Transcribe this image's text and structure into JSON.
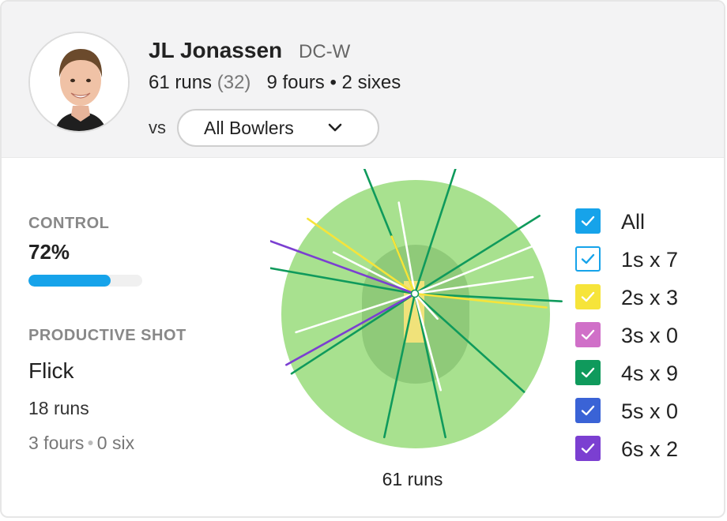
{
  "player": {
    "name": "JL Jonassen",
    "team": "DC-W",
    "runs": "61 runs",
    "balls": "(32)",
    "boundaries": "9 fours • 2 sixes"
  },
  "filter": {
    "vs_label": "vs",
    "bowler_value": "All Bowlers",
    "chevron_icon": "chevron-down-icon"
  },
  "control": {
    "label": "CONTROL",
    "value": "72%",
    "percent": 72,
    "bar_color": "#16a3ea"
  },
  "productive": {
    "label": "PRODUCTIVE SHOT",
    "shot": "Flick",
    "runs": "18 runs",
    "fours": "3 fours",
    "sixes": "0 six"
  },
  "wagon_wheel": {
    "total_label": "61 runs",
    "field_color": "#a8e18f",
    "inner_color": "#8fca79",
    "pitch_color": "#f0e27a",
    "shot_colors": {
      "1s": "#ffffff",
      "2s": "#f6e43a",
      "4s": "#0f9a5c",
      "6s": "#7b3fd1"
    },
    "shots": [
      {
        "type": "4s",
        "angle": 112,
        "length": 1.0
      },
      {
        "type": "4s",
        "angle": 72,
        "length": 1.0
      },
      {
        "type": "4s",
        "angle": 32,
        "length": 1.0
      },
      {
        "type": "4s",
        "angle": -3,
        "length": 1.0
      },
      {
        "type": "4s",
        "angle": -42,
        "length": 1.0
      },
      {
        "type": "4s",
        "angle": -78,
        "length": 1.0
      },
      {
        "type": "4s",
        "angle": -102,
        "length": 1.0
      },
      {
        "type": "4s",
        "angle": -147,
        "length": 1.0
      },
      {
        "type": "4s",
        "angle": 170,
        "length": 1.0
      },
      {
        "type": "1s",
        "angle": 100,
        "length": 0.63
      },
      {
        "type": "1s",
        "angle": 22,
        "length": 0.87
      },
      {
        "type": "1s",
        "angle": 8,
        "length": 0.81
      },
      {
        "type": "1s",
        "angle": -48,
        "length": 0.23
      },
      {
        "type": "1s",
        "angle": -75,
        "length": 0.68
      },
      {
        "type": "1s",
        "angle": -162,
        "length": 0.85
      },
      {
        "type": "1s",
        "angle": 153,
        "length": 0.62
      },
      {
        "type": "2s",
        "angle": 145,
        "length": 0.89
      },
      {
        "type": "2s",
        "angle": -6,
        "length": 0.9
      },
      {
        "type": "2s",
        "angle": 112,
        "length": 0.42
      },
      {
        "type": "6s",
        "angle": 160,
        "length": 1.1
      },
      {
        "type": "6s",
        "angle": -151,
        "length": 1.0
      }
    ]
  },
  "legend": [
    {
      "label": "All",
      "color": "#16a3ea",
      "style": "filled"
    },
    {
      "label": "1s x 7",
      "color": "#16a3ea",
      "style": "outline"
    },
    {
      "label": "2s x 3",
      "color": "#f6e43a",
      "style": "filled"
    },
    {
      "label": "3s x 0",
      "color": "#d070c8",
      "style": "filled"
    },
    {
      "label": "4s x 9",
      "color": "#0f9a5c",
      "style": "filled"
    },
    {
      "label": "5s x 0",
      "color": "#3a63d6",
      "style": "filled"
    },
    {
      "label": "6s x 2",
      "color": "#7b3fd1",
      "style": "filled"
    }
  ]
}
